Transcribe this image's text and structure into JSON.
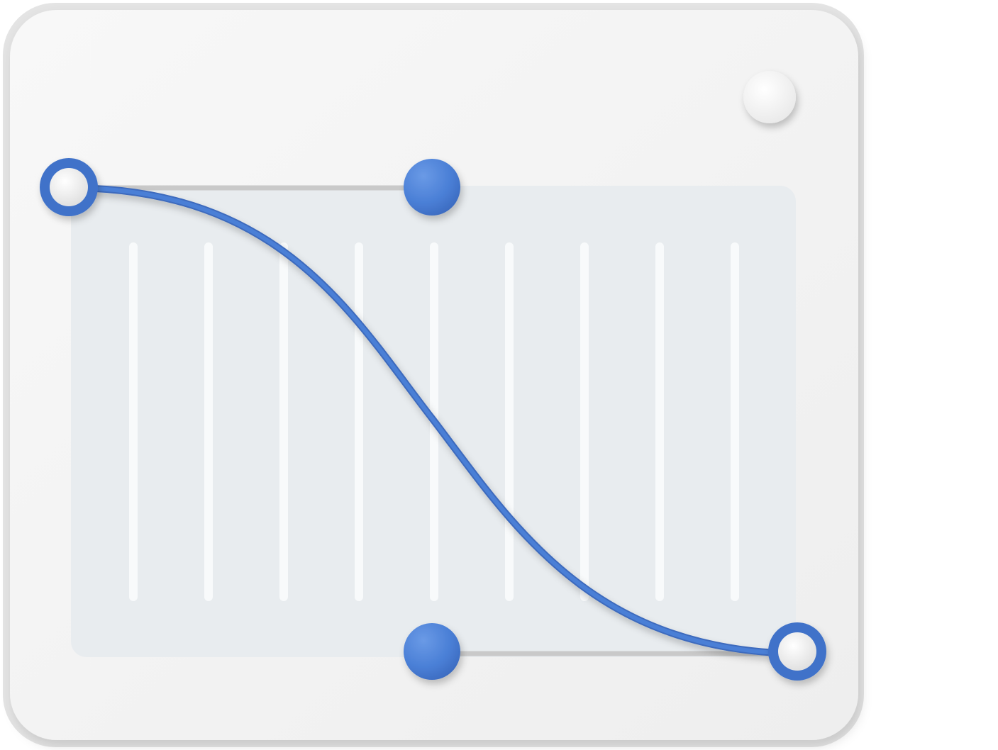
{
  "illustration": {
    "subject": "bezier-curve-editor-icon",
    "colors": {
      "panel": "#f4f4f4",
      "panel_edge": "#e2e2e2",
      "plot_area": "#e8ecef",
      "grid_line": "#f8fafb",
      "curve": "#4476cc",
      "handle_line": "#c9c9c9",
      "node_fill": "#4a7fd6",
      "endpoint_ring": "#3f72c9",
      "endpoint_core": "#f7f7f7",
      "corner_button": "#f6f6f6"
    },
    "icons": [
      "panel",
      "corner-button-icon",
      "grid-lines",
      "bezier-curve",
      "control-handles",
      "endpoint-nodes"
    ]
  }
}
